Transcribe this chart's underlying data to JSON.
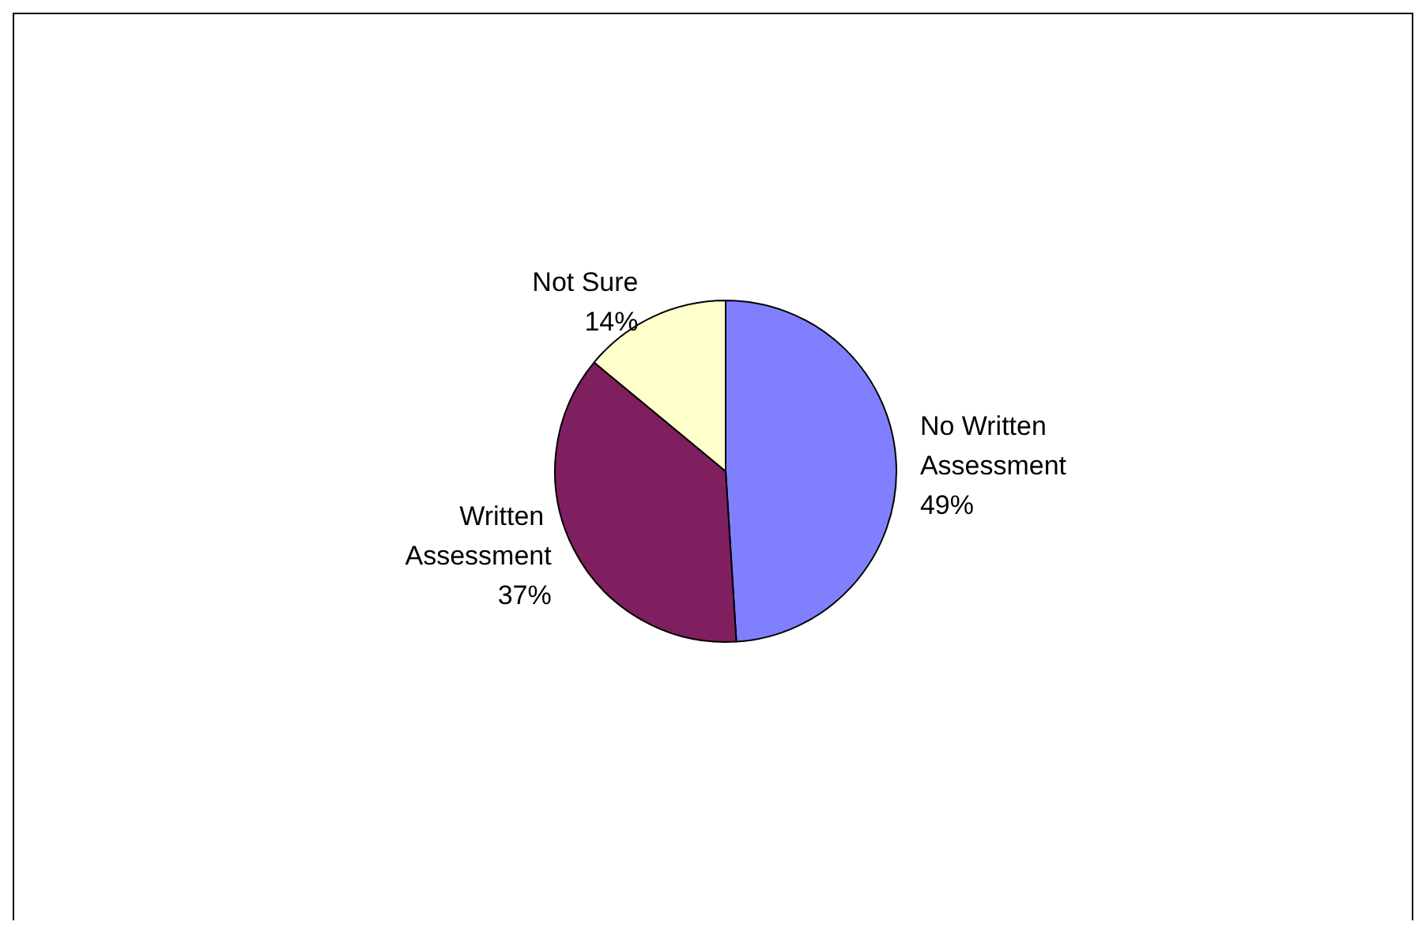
{
  "chart_data": {
    "type": "pie",
    "categories": [
      "No Written Assessment",
      "Written Assessment",
      "Not Sure"
    ],
    "values": [
      49,
      37,
      14
    ],
    "value_labels": [
      "49%",
      "37%",
      "14%"
    ],
    "colors": [
      "#8080ff",
      "#7f1f5f",
      "#ffffcc"
    ],
    "legend": false
  }
}
